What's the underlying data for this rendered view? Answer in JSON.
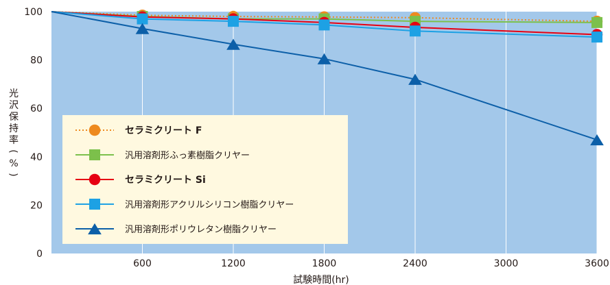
{
  "chart_data": {
    "type": "line",
    "title": "",
    "xlabel": "試験時間(hr)",
    "ylabel": "光沢保持率(%)",
    "x": [
      0,
      600,
      1200,
      1800,
      2400,
      3600
    ],
    "x_ticks": [
      "600",
      "1200",
      "1800",
      "2400",
      "3000",
      "3600"
    ],
    "x_tick_values": [
      600,
      1200,
      1800,
      2400,
      3000,
      3600
    ],
    "y_ticks": [
      "0",
      "20",
      "40",
      "60",
      "80",
      "100"
    ],
    "y_tick_values": [
      0,
      20,
      40,
      60,
      80,
      100
    ],
    "xlim": [
      0,
      3600
    ],
    "ylim": [
      0,
      100
    ],
    "grid": "vertical",
    "background": "#a3c8ea",
    "legend_position": "bottom-left",
    "series": [
      {
        "name": "セラミクリート F",
        "bold": true,
        "marker": "circle",
        "line": "dotted",
        "color": "#ee8a1e",
        "values": [
          100,
          98.5,
          98,
          97.8,
          97.5,
          96
        ]
      },
      {
        "name": "汎用溶剤形ふっ素樹脂クリヤー",
        "bold": false,
        "marker": "square",
        "line": "solid",
        "color": "#7cc04b",
        "values": [
          100,
          98,
          97,
          97,
          96,
          95.5
        ]
      },
      {
        "name": "セラミクリート Si",
        "bold": true,
        "marker": "circle",
        "line": "solid",
        "color": "#e60012",
        "values": [
          100,
          97.8,
          97,
          95.5,
          93.5,
          90.5
        ]
      },
      {
        "name": "汎用溶剤形アクリルシリコン樹脂クリヤー",
        "bold": false,
        "marker": "square",
        "line": "solid",
        "color": "#1da1e4",
        "values": [
          100,
          97,
          96,
          94.5,
          92,
          89.5
        ]
      },
      {
        "name": "汎用溶剤形ポリウレタン樹脂クリヤー",
        "bold": false,
        "marker": "triangle",
        "line": "solid",
        "color": "#0c5fa8",
        "values": [
          100,
          93,
          86.5,
          80.5,
          72,
          47
        ]
      }
    ]
  }
}
